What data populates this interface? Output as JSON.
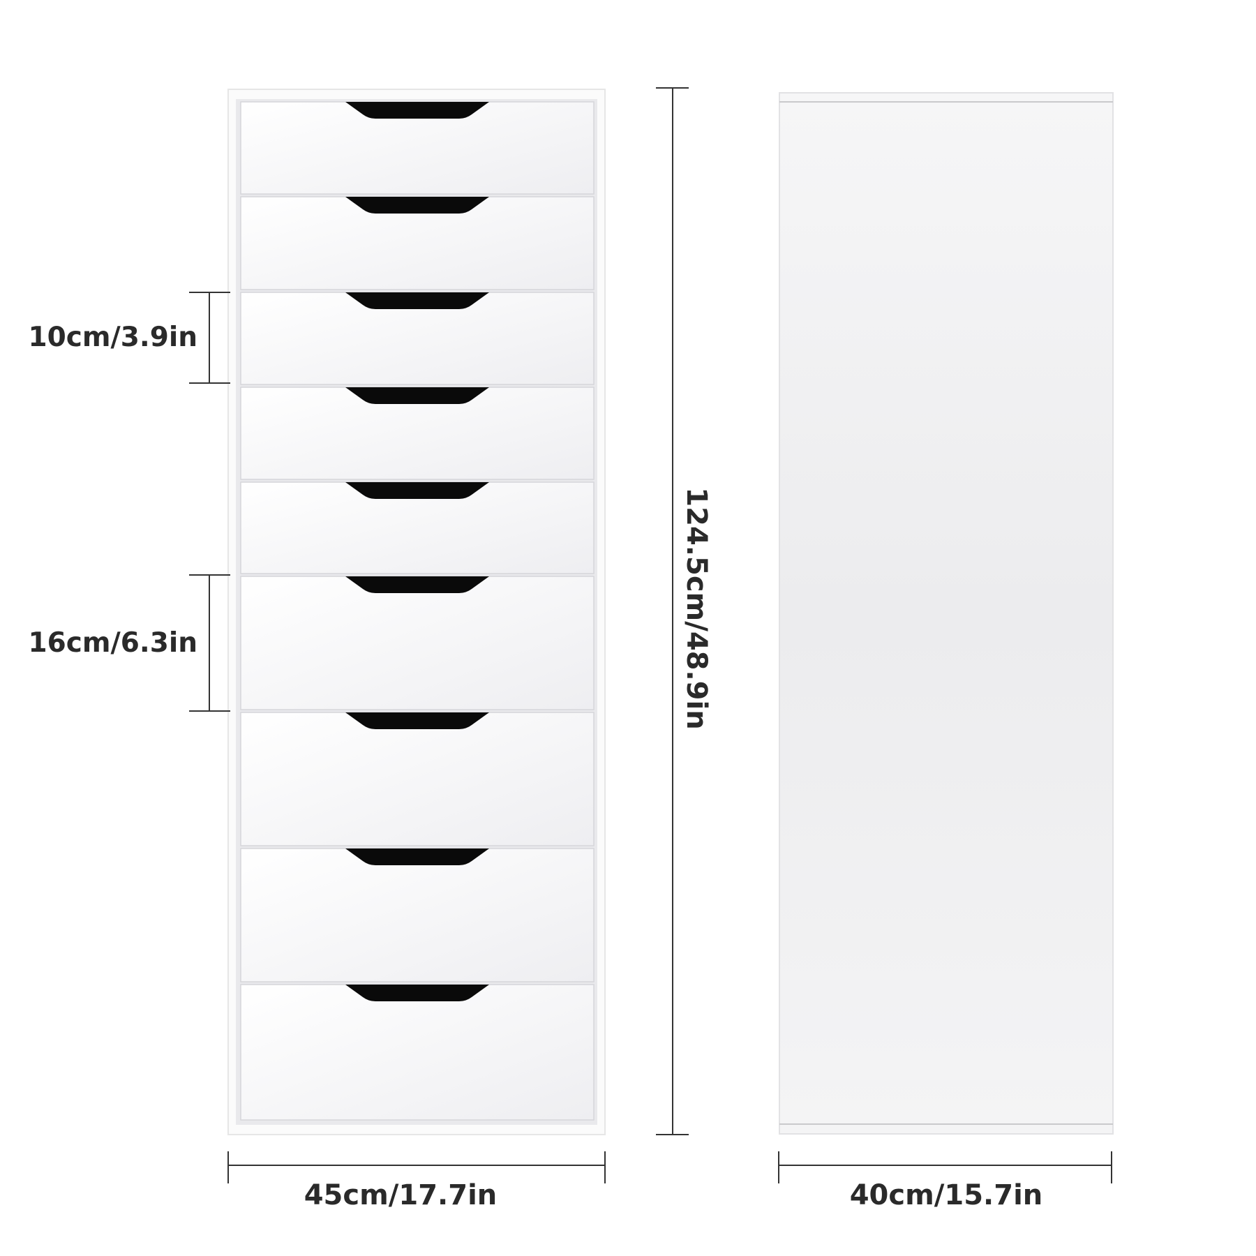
{
  "dimensions": {
    "drawer_small_height": "10cm/3.9in",
    "drawer_large_height": "16cm/6.3in",
    "total_height": "124.5cm/48.9in",
    "front_width": "45cm/17.7in",
    "side_depth": "40cm/15.7in"
  },
  "cabinet": {
    "drawer_count": 9,
    "small_drawer_count": 5,
    "large_drawer_count": 4
  },
  "colors": {
    "cabinet": "#ffffff",
    "drawer_front": "#f4f4f6",
    "handle": "#0a0a0a",
    "line": "#333333",
    "text": "#2a2a2a"
  }
}
